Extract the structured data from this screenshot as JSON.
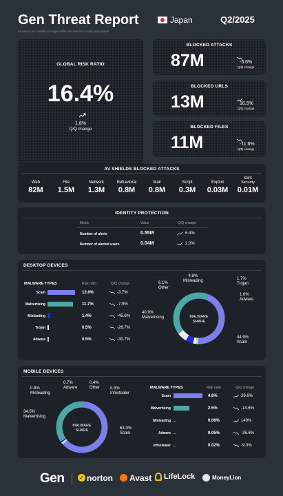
{
  "header": {
    "title": "Gen Threat Report",
    "country": "Japan",
    "period": "Q2/2025",
    "subtitle": "All values are monthly averages within the selected country and quarter"
  },
  "global_risk": {
    "label": "GLOBAL RISK RATIO",
    "value": "16.4%",
    "change": "1.8%",
    "change_label": "Q/Q change"
  },
  "kpis": [
    {
      "label": "BLOCKED ATTACKS",
      "value": "87M",
      "change": "-5.6%",
      "change_label": "Q/Q change"
    },
    {
      "label": "BLOCKED URLS",
      "value": "13M",
      "change": "16.5%",
      "change_label": "Q/Q change"
    },
    {
      "label": "BLOCKED FILES",
      "value": "11M",
      "change": "-11.6%",
      "change_label": "Q/Q change"
    }
  ],
  "av_shields": {
    "title": "AV SHIELDS BLOCKED ATTACKS",
    "items": [
      {
        "label": "Web",
        "value": "82M"
      },
      {
        "label": "File",
        "value": "1.5M"
      },
      {
        "label": "Network",
        "value": "1.3M"
      },
      {
        "label": "Behavioral",
        "value": "0.8M"
      },
      {
        "label": "Mail",
        "value": "0.8M"
      },
      {
        "label": "Script",
        "value": "0.3M"
      },
      {
        "label": "Exploit",
        "value": "0.03M"
      },
      {
        "label": "SMS Security",
        "value": "0.01M"
      }
    ]
  },
  "identity": {
    "title": "IDENTITY PROTECTION",
    "headers": [
      "Metric",
      "Value",
      "Q/Q change"
    ],
    "rows": [
      {
        "metric": "Number of alerts",
        "value": "0.55M",
        "change": "6.4%"
      },
      {
        "metric": "Number of alerted users",
        "value": "0.04M",
        "change": "2.0%"
      }
    ]
  },
  "desktop": {
    "title": "DESKTOP DEVICES",
    "headers": [
      "MALWARE TYPES",
      "Risk ratio",
      "Q/Q change"
    ],
    "rows": [
      {
        "name": "Scam",
        "ratio": "12.6%",
        "change": "-3.7%",
        "frac": 1.0,
        "color": "#7b7fe8"
      },
      {
        "name": "Malvertising",
        "ratio": "11.7%",
        "change": "-7.9%",
        "frac": 0.93,
        "color": "#4aa9a4"
      },
      {
        "name": "Misleading",
        "ratio": "1.4%",
        "change": "-45.6%",
        "frac": 0.11,
        "color": "#1f2de0"
      },
      {
        "name": "Trojan",
        "ratio": "0.5%",
        "change": "-28.7%",
        "frac": 0.04,
        "color": "#ffffff"
      },
      {
        "name": "Adware",
        "ratio": "0.5%",
        "change": "-30.7%",
        "frac": 0.04,
        "color": "#c7ccd6"
      }
    ],
    "donut_center": "MALWARE SHARE",
    "labels": [
      {
        "pct": "4.8%",
        "name": "Misleading"
      },
      {
        "pct": "1.7%",
        "name": "Trojan"
      },
      {
        "pct": "6.1%",
        "name": "Other"
      },
      {
        "pct": "1.6%",
        "name": "Adware"
      },
      {
        "pct": "40.9%",
        "name": "Malvertising"
      },
      {
        "pct": "44.9%",
        "name": "Scam"
      }
    ],
    "share": [
      44.9,
      1.6,
      1.7,
      4.8,
      6.1,
      40.9
    ]
  },
  "mobile": {
    "title": "MOBILE DEVICES",
    "headers": [
      "MALWARE TYPES",
      "Risk ratio",
      "Q/Q change"
    ],
    "rows": [
      {
        "name": "Scam",
        "ratio": "4.6%",
        "change": "29.6%",
        "frac": 1.0,
        "color": "#7b7fe8"
      },
      {
        "name": "Malvertising",
        "ratio": "2.5%",
        "change": "-14.6%",
        "frac": 0.54,
        "color": "#4aa9a4"
      },
      {
        "name": "Misleading",
        "ratio": "0.06%",
        "change": "149%",
        "frac": 0.0,
        "color": "#1f2de0"
      },
      {
        "name": "Adware",
        "ratio": "0.05%",
        "change": "-35.6%",
        "frac": 0.0,
        "color": "#c7ccd6"
      },
      {
        "name": "Infostealer",
        "ratio": "0.02%",
        "change": "-9.3%",
        "frac": 0.0,
        "color": "#ffffff"
      }
    ],
    "donut_center": "MALWARE SHARE",
    "labels": [
      {
        "pct": "0.8%",
        "name": "Misleading"
      },
      {
        "pct": "0.7%",
        "name": "Adware"
      },
      {
        "pct": "0.4%",
        "name": "Other"
      },
      {
        "pct": "0.3%",
        "name": "Infostealer"
      },
      {
        "pct": "34.5%",
        "name": "Malvertising"
      },
      {
        "pct": "63.3%",
        "name": "Scam"
      }
    ],
    "share": [
      63.3,
      0.3,
      0.4,
      0.7,
      0.8,
      34.5
    ]
  },
  "footer": {
    "brands": [
      "Gen",
      "norton",
      "Avast",
      "LifeLock",
      "MoneyLion"
    ]
  },
  "colors": {
    "scam": "#7b7fe8",
    "malvertising": "#4aa9a4",
    "misleading": "#1f2de0",
    "card": "#1d2228",
    "bg": "#2b3138"
  }
}
